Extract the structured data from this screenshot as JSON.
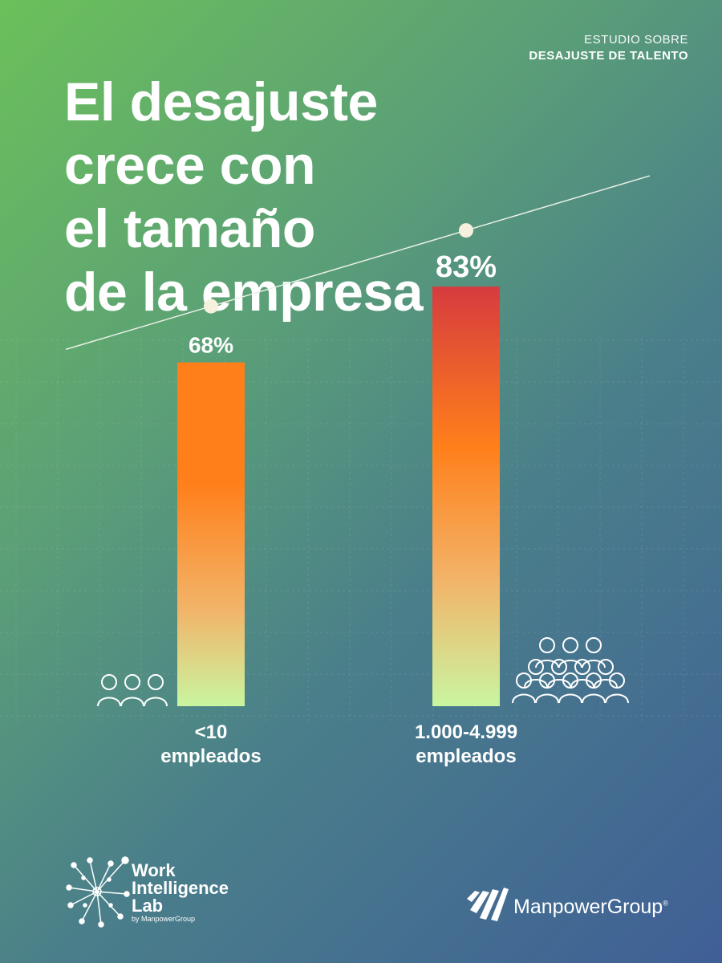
{
  "header": {
    "eyebrow_top": "ESTUDIO SOBRE",
    "eyebrow_bottom": "DESAJUSTE DE TALENTO",
    "title_lines": [
      "El desajuste",
      "crece con",
      "el tamaño",
      "de la empresa"
    ]
  },
  "chart_data": {
    "type": "bar",
    "title": "El desajuste crece con el tamaño de la empresa",
    "categories": [
      "<10 empleados",
      "1.000-4.999 empleados"
    ],
    "category_lines": [
      [
        "<10",
        "empleados"
      ],
      [
        "1.000-4.999",
        "empleados"
      ]
    ],
    "values": [
      68,
      83
    ],
    "value_labels": [
      "68%",
      "83%"
    ],
    "unit": "%",
    "ylim": [
      0,
      100
    ],
    "grid": true,
    "trend_line": true,
    "colors": {
      "bar_top_high": "#d63b3f",
      "bar_mid": "#ff7f1a",
      "bar_low": "#f2b469",
      "bar_base": "#c9f5a0",
      "trend": "#e9f0e6",
      "marker": "#f6f1df"
    }
  },
  "icons": {
    "small_group": "people-group-icon",
    "large_group": "crowd-icon"
  },
  "logos": {
    "wil_line1": "Work",
    "wil_line2": "Intelligence",
    "wil_line3": "Lab",
    "wil_sub": "by ManpowerGroup",
    "manpower": "ManpowerGroup"
  },
  "colors": {
    "background_top": "#6cc05a",
    "background_bottom": "#3f5f96",
    "text": "#ffffff"
  }
}
